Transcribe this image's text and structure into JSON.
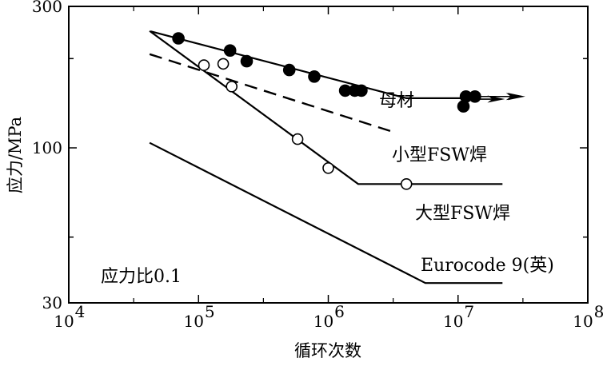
{
  "chart_data": {
    "type": "line",
    "xscale": "log",
    "yscale": "log",
    "xlim": [
      10000,
      100000000
    ],
    "ylim": [
      30,
      300
    ],
    "xlabel": "循环次数",
    "ylabel": "应力/MPa",
    "x_ticks": [
      {
        "value": 10000,
        "base": "10",
        "exp": "4"
      },
      {
        "value": 100000,
        "base": "10",
        "exp": "5"
      },
      {
        "value": 1000000,
        "base": "10",
        "exp": "6"
      },
      {
        "value": 10000000,
        "base": "10",
        "exp": "7"
      },
      {
        "value": 100000000,
        "base": "10",
        "exp": "8"
      }
    ],
    "y_ticks": [
      {
        "value": 300,
        "label": "300"
      },
      {
        "value": 100,
        "label": "100"
      },
      {
        "value": 30,
        "label": "30"
      }
    ],
    "annotation": "应力比0.1",
    "series": [
      {
        "name": "母材",
        "style": "solid",
        "line": [
          [
            43000,
            247
          ],
          [
            4000000,
            147
          ],
          [
            12000000,
            147
          ]
        ],
        "markers": "filled",
        "points": [
          [
            70000,
            234
          ],
          [
            175000,
            213
          ],
          [
            235000,
            196
          ],
          [
            500000,
            183
          ],
          [
            780000,
            174
          ],
          [
            1350000,
            156
          ],
          [
            1600000,
            156
          ],
          [
            1800000,
            156
          ],
          [
            11000000,
            138
          ],
          [
            11500000,
            149
          ],
          [
            13500000,
            149
          ]
        ],
        "runout_arrows": [
          [
            11500000,
            149,
            32000000
          ],
          [
            13500000,
            149,
            33000000
          ],
          [
            11000000,
            146,
            23000000
          ]
        ]
      },
      {
        "name": "小型FSW焊",
        "style": "dashed",
        "line": [
          [
            42000,
            207
          ],
          [
            3000000,
            114
          ]
        ]
      },
      {
        "name": "大型FSW焊",
        "style": "solid",
        "line": [
          [
            42000,
            248
          ],
          [
            1700000,
            75.5
          ],
          [
            22000000,
            75.5
          ]
        ],
        "markers": "open",
        "points": [
          [
            110000,
            190
          ],
          [
            155000,
            192
          ],
          [
            180000,
            161
          ],
          [
            580000,
            107
          ],
          [
            1000000,
            85.5
          ],
          [
            4000000,
            75.5
          ]
        ]
      },
      {
        "name": "Eurocode 9(英)",
        "style": "solid",
        "line": [
          [
            42000,
            104
          ],
          [
            5600000,
            35
          ],
          [
            22000000,
            35
          ]
        ]
      }
    ]
  }
}
